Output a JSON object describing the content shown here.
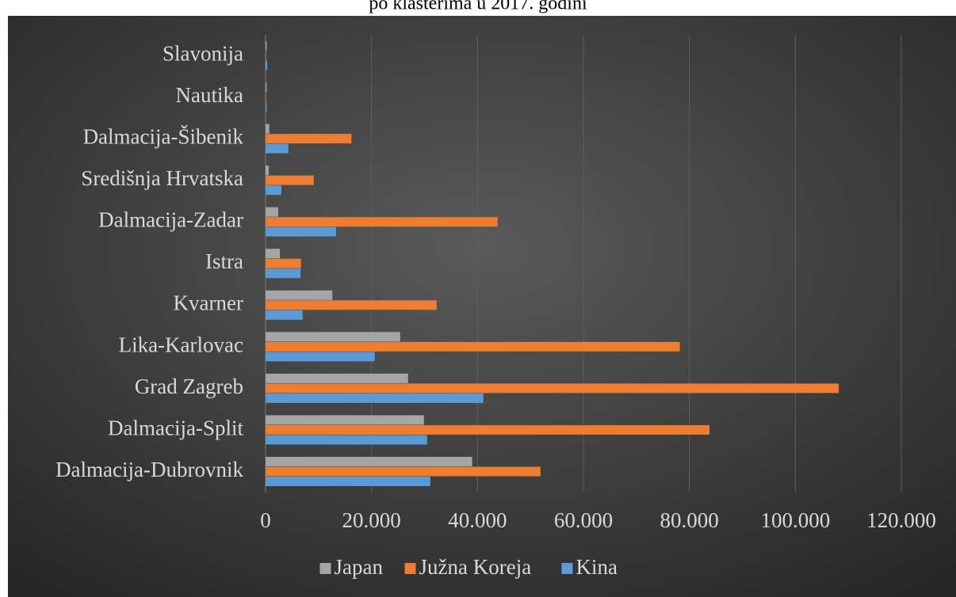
{
  "chart_data": {
    "type": "bar",
    "orientation": "horizontal",
    "title": "po klasterima u 2017. godini",
    "categories": [
      "Dalmacija-Dubrovnik",
      "Dalmacija-Split",
      "Grad Zagreb",
      "Lika-Karlovac",
      "Kvarner",
      "Istra",
      "Dalmacija-Zadar",
      "Središnja Hrvatska",
      "Dalmacija-Šibenik",
      "Nautika",
      "Slavonija"
    ],
    "series": [
      {
        "name": "Japan",
        "color": "#a5a5a5",
        "values": [
          39000,
          29900,
          26900,
          25400,
          12600,
          2700,
          2400,
          600,
          700,
          200,
          200
        ]
      },
      {
        "name": "Južna Koreja",
        "color": "#ed7d31",
        "values": [
          51900,
          83800,
          108200,
          78200,
          32300,
          6700,
          43800,
          9100,
          16200,
          100,
          100
        ]
      },
      {
        "name": "Kina",
        "color": "#5b9bd5",
        "values": [
          31100,
          30500,
          41100,
          20600,
          7000,
          6600,
          13300,
          3000,
          4300,
          200,
          300
        ]
      }
    ],
    "xlim": [
      0,
      120000
    ],
    "xticks": [
      0,
      {
        "value": 20000,
        "label": "20.000"
      },
      {
        "value": 40000,
        "label": "40.000"
      },
      {
        "value": 60000,
        "label": "60.000"
      },
      {
        "value": 80000,
        "label": "80.000"
      },
      {
        "value": 100000,
        "label": "100.000"
      },
      {
        "value": 120000,
        "label": "120.000"
      }
    ],
    "grid": true,
    "legend": "bottom"
  }
}
